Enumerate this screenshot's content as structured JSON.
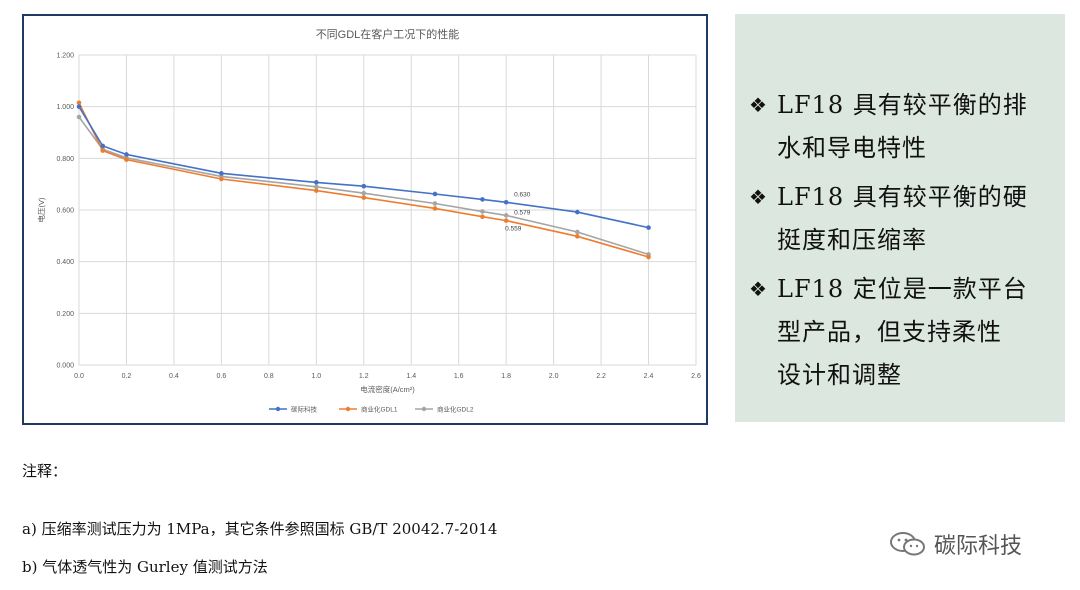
{
  "chart_data": {
    "type": "line",
    "title": "不同GDL在客户工况下的性能",
    "xlabel": "电流密度(A/cm²)",
    "ylabel": "电压(V)",
    "xlim": [
      0,
      2.6
    ],
    "ylim": [
      0,
      1.2
    ],
    "x_ticks": [
      "0.0",
      "0.2",
      "0.4",
      "0.6",
      "0.8",
      "1.0",
      "1.2",
      "1.4",
      "1.6",
      "1.8",
      "2.0",
      "2.2",
      "2.4",
      "2.6"
    ],
    "y_ticks": [
      "0.000",
      "0.200",
      "0.400",
      "0.600",
      "0.800",
      "1.000",
      "1.200"
    ],
    "grid": true,
    "legend_position": "bottom",
    "series": [
      {
        "name": "碳际科技",
        "color": "#4472c4",
        "x": [
          0,
          0.1,
          0.2,
          0.6,
          1.0,
          1.2,
          1.5,
          1.7,
          1.8,
          2.1,
          2.4
        ],
        "y": [
          1.0,
          0.848,
          0.815,
          0.742,
          0.707,
          0.692,
          0.662,
          0.641,
          0.63,
          0.592,
          0.532
        ]
      },
      {
        "name": "商业化GDL1",
        "color": "#ed7d31",
        "x": [
          0,
          0.1,
          0.2,
          0.6,
          1.0,
          1.2,
          1.5,
          1.7,
          1.8,
          2.1,
          2.4
        ],
        "y": [
          1.015,
          0.83,
          0.795,
          0.72,
          0.675,
          0.648,
          0.606,
          0.574,
          0.559,
          0.498,
          0.418
        ]
      },
      {
        "name": "商业化GDL2",
        "color": "#a5a5a5",
        "x": [
          0,
          0.1,
          0.2,
          0.6,
          1.0,
          1.2,
          1.5,
          1.7,
          1.8,
          2.1,
          2.4
        ],
        "y": [
          0.96,
          0.835,
          0.802,
          0.73,
          0.69,
          0.665,
          0.625,
          0.594,
          0.579,
          0.515,
          0.428
        ]
      }
    ],
    "annotations": [
      {
        "text": "0.630",
        "x": 1.8,
        "y": 0.63
      },
      {
        "text": "0.579",
        "x": 1.8,
        "y": 0.579
      },
      {
        "text": "0.559",
        "x": 1.8,
        "y": 0.559
      }
    ]
  },
  "bullets": [
    {
      "mark": "❖",
      "lines": [
        "LF18 具有较平衡的排",
        "水和导电特性"
      ]
    },
    {
      "mark": "❖",
      "lines": [
        "LF18 具有较平衡的硬",
        "挺度和压缩率"
      ]
    },
    {
      "mark": "❖",
      "lines": [
        "LF18 定位是一款平台",
        "型产品，但支持柔性",
        "设计和调整"
      ]
    }
  ],
  "notes": {
    "title": "注释：",
    "lines": [
      "a) 压缩率测试压力为 1MPa，其它条件参照国标 GB/T 20042.7-2014",
      "b) 气体透气性为 Gurley 值测试方法"
    ]
  },
  "watermark": {
    "text": "碳际科技",
    "icon": "wechat-icon"
  }
}
